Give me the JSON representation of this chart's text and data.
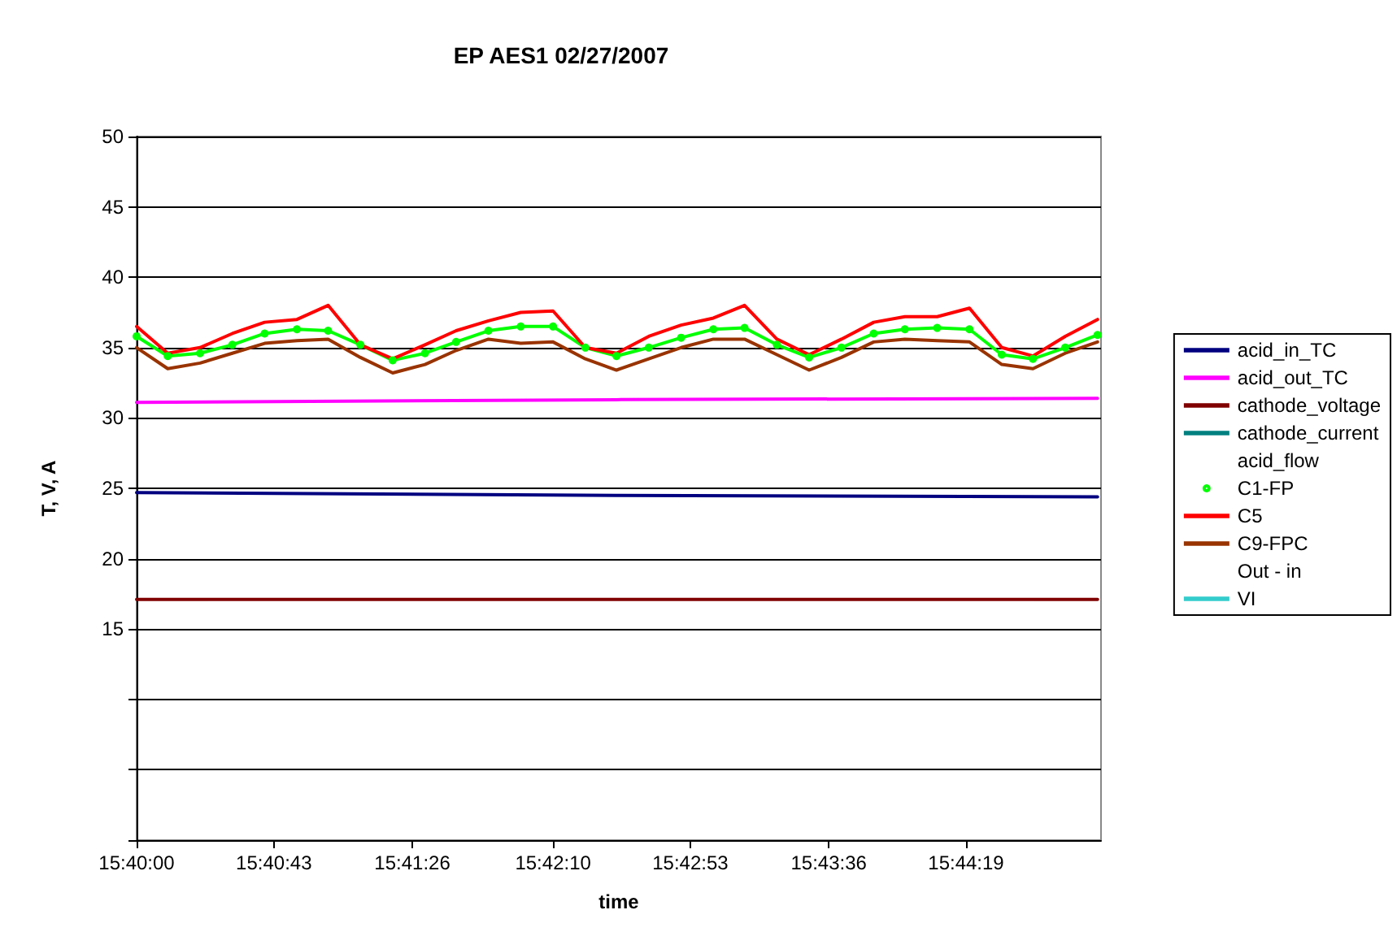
{
  "chart_data": {
    "type": "line",
    "title": "EP AES1 02/27/2007",
    "xlabel": "time",
    "ylabel": "T, V, A",
    "x": [
      15.6667,
      15.6694,
      15.6722,
      15.675,
      15.6778,
      15.6806,
      15.6833,
      15.6861,
      15.6889,
      15.6917,
      15.6944,
      15.6972,
      15.7,
      15.7028,
      15.7056,
      15.7083,
      15.7111,
      15.7139,
      15.7167,
      15.7194,
      15.7222,
      15.725,
      15.7278,
      15.7306,
      15.7333,
      15.7361,
      15.7389,
      15.7417,
      15.7444,
      15.7472,
      15.75
    ],
    "xlim": [
      15.6667,
      15.7503
    ],
    "xticks": [
      {
        "value": 15.6667,
        "label": "15:40:00"
      },
      {
        "value": 15.6786,
        "label": "15:40:43"
      },
      {
        "value": 15.6906,
        "label": "15:41:26"
      },
      {
        "value": 15.7028,
        "label": "15:42:10"
      },
      {
        "value": 15.7147,
        "label": "15:42:53"
      },
      {
        "value": 15.7267,
        "label": "15:43:36"
      },
      {
        "value": 15.7386,
        "label": "15:44:19"
      }
    ],
    "ylim": [
      0,
      50
    ],
    "yticks": [
      {
        "value": 0,
        "label": null
      },
      {
        "value": 5,
        "label": null
      },
      {
        "value": 10,
        "label": null
      },
      15,
      20,
      25,
      30,
      35,
      40,
      45,
      50
    ],
    "grid": "y",
    "legend": "right",
    "marker": "none",
    "line_style": "solid",
    "series": [
      {
        "name": "acid_in_TC",
        "color": "#000080",
        "x": [
          15.6667,
          15.7083,
          15.75
        ],
        "values": [
          24.7,
          24.5,
          24.4
        ]
      },
      {
        "name": "acid_out_TC",
        "color": "#ff00ff",
        "x": [
          15.6667,
          15.7083,
          15.75
        ],
        "values": [
          31.1,
          31.3,
          31.4
        ]
      },
      {
        "name": "cathode_voltage",
        "color": "#800000",
        "x": [
          15.6667,
          15.7083,
          15.75
        ],
        "values": [
          17.1,
          17.1,
          17.1
        ]
      },
      {
        "name": "cathode_current",
        "color": "#008080",
        "values": [
          null,
          null,
          null,
          null,
          null,
          null,
          null,
          null,
          null,
          null,
          null,
          null,
          null,
          null,
          null,
          null,
          null,
          null,
          null,
          null,
          null,
          null,
          null,
          null,
          null,
          null,
          null,
          null,
          null,
          null,
          null
        ]
      },
      {
        "name": "acid_flow",
        "values": [
          null,
          null,
          null,
          null,
          null,
          null,
          null,
          null,
          null,
          null,
          null,
          null,
          null,
          null,
          null,
          null,
          null,
          null,
          null,
          null,
          null,
          null,
          null,
          null,
          null,
          null,
          null,
          null,
          null,
          null,
          null
        ]
      },
      {
        "name": "C1-FP",
        "color": "#00ff00",
        "marker": "circle",
        "values": [
          35.8,
          34.4,
          34.6,
          35.2,
          36.0,
          36.3,
          36.2,
          35.2,
          34.1,
          34.6,
          35.4,
          36.2,
          36.5,
          36.5,
          35.0,
          34.4,
          35.0,
          35.7,
          36.3,
          36.4,
          35.2,
          34.3,
          35.0,
          36.0,
          36.3,
          36.4,
          36.3,
          34.5,
          34.2,
          35.0,
          35.9
        ]
      },
      {
        "name": "C5",
        "color": "#ff0000",
        "values": [
          36.5,
          34.6,
          35.0,
          36.0,
          36.8,
          37.0,
          38.0,
          35.2,
          34.2,
          35.2,
          36.2,
          36.9,
          37.5,
          37.6,
          35.0,
          34.6,
          35.8,
          36.6,
          37.1,
          38.0,
          35.6,
          34.5,
          35.6,
          36.8,
          37.2,
          37.2,
          37.8,
          35.0,
          34.4,
          35.8,
          37.0
        ]
      },
      {
        "name": "C9-FPC",
        "color": "#993300",
        "values": [
          35.0,
          33.5,
          33.9,
          34.6,
          35.3,
          35.5,
          35.6,
          34.3,
          33.2,
          33.8,
          34.8,
          35.6,
          35.3,
          35.4,
          34.2,
          33.4,
          34.2,
          35.0,
          35.6,
          35.6,
          34.5,
          33.4,
          34.3,
          35.4,
          35.6,
          35.5,
          35.4,
          33.8,
          33.5,
          34.6,
          35.4
        ]
      },
      {
        "name": "Out - in",
        "values": [
          null,
          null,
          null,
          null,
          null,
          null,
          null,
          null,
          null,
          null,
          null,
          null,
          null,
          null,
          null,
          null,
          null,
          null,
          null,
          null,
          null,
          null,
          null,
          null,
          null,
          null,
          null,
          null,
          null,
          null,
          null
        ]
      },
      {
        "name": "VI",
        "color": "#33cccc",
        "values": [
          null,
          null,
          null,
          null,
          null,
          null,
          null,
          null,
          null,
          null,
          null,
          null,
          null,
          null,
          null,
          null,
          null,
          null,
          null,
          null,
          null,
          null,
          null,
          null,
          null,
          null,
          null,
          null,
          null,
          null,
          null
        ]
      }
    ]
  }
}
